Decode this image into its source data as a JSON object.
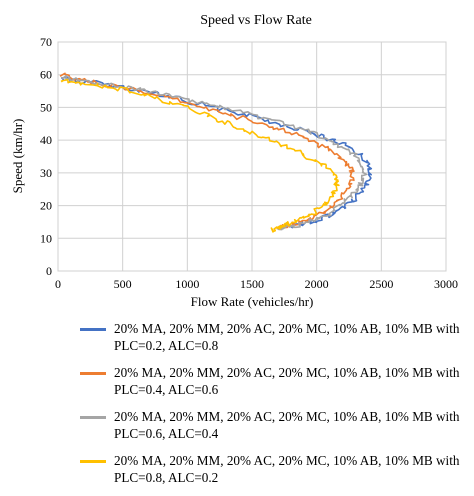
{
  "chart_data": {
    "type": "scatter",
    "title": "Speed vs Flow Rate",
    "xlabel": "Flow Rate (vehicles/hr)",
    "ylabel": "Speed (km/hr)",
    "xlim": [
      0,
      3000
    ],
    "ylim": [
      0,
      70
    ],
    "xticks": [
      0,
      500,
      1000,
      1500,
      2000,
      2500,
      3000
    ],
    "yticks": [
      0,
      10,
      20,
      30,
      40,
      50,
      60,
      70
    ],
    "grid": true,
    "legend_position": "bottom",
    "series": [
      {
        "name": "20% MA, 20% MM, 20% AC, 20% MC, 10% AB, 10% MB with PLC=0.2, ALC=0.8",
        "color": "#4472C4",
        "x": [
          30,
          150,
          300,
          500,
          700,
          900,
          1100,
          1300,
          1500,
          1700,
          1900,
          2050,
          2200,
          2320,
          2400,
          2420,
          2380,
          2300,
          2200,
          2100,
          1950,
          1850,
          1750,
          1690
        ],
        "y": [
          59,
          58,
          57.5,
          56,
          55,
          53,
          51,
          49,
          47.5,
          45,
          43,
          41,
          39,
          36,
          33,
          30,
          26,
          22,
          19,
          17,
          15,
          14,
          13.5,
          13
        ]
      },
      {
        "name": "20% MA, 20% MM, 20% AC, 20% MC, 10% AB, 10% MB with PLC=0.4, ALC=0.6",
        "color": "#ED7D31",
        "x": [
          30,
          150,
          300,
          500,
          700,
          900,
          1100,
          1300,
          1500,
          1700,
          1850,
          2000,
          2120,
          2220,
          2270,
          2280,
          2240,
          2170,
          2080,
          1980,
          1880,
          1790,
          1720,
          1690
        ],
        "y": [
          60,
          58.5,
          57.5,
          56,
          54.5,
          52.5,
          50.5,
          48,
          46,
          43.5,
          41.5,
          39,
          36.5,
          33.5,
          31,
          28,
          25,
          21.5,
          18.5,
          16.5,
          15,
          14,
          13.5,
          13
        ]
      },
      {
        "name": "20% MA, 20% MM, 20% AC, 20% MC, 10% AB, 10% MB with PLC=0.6, ALC=0.4",
        "color": "#A5A5A5",
        "x": [
          30,
          150,
          300,
          500,
          700,
          900,
          1100,
          1300,
          1500,
          1700,
          1900,
          2050,
          2180,
          2290,
          2350,
          2370,
          2330,
          2260,
          2170,
          2070,
          1950,
          1840,
          1750,
          1700
        ],
        "y": [
          59.5,
          58,
          57.5,
          56.5,
          55,
          53,
          51.5,
          49.5,
          47.5,
          45.5,
          43,
          41,
          38.5,
          35.5,
          32.5,
          29.5,
          26,
          22.5,
          19.5,
          17,
          15.5,
          14,
          13.5,
          13
        ]
      },
      {
        "name": "20% MA, 20% MM, 20% AC, 20% MC, 10% AB, 10% MB with PLC=0.8, ALC=0.2",
        "color": "#FFC000",
        "x": [
          30,
          150,
          300,
          500,
          700,
          900,
          1100,
          1250,
          1400,
          1550,
          1700,
          1850,
          1980,
          2080,
          2140,
          2160,
          2130,
          2060,
          1980,
          1890,
          1800,
          1730,
          1680,
          1660
        ],
        "y": [
          58,
          57.5,
          57,
          55.5,
          53.5,
          51,
          48.5,
          46,
          44,
          41.5,
          39,
          36.5,
          34,
          31.5,
          29,
          26.5,
          23.5,
          20.5,
          18,
          16,
          14.5,
          13.5,
          13,
          12.5
        ]
      }
    ]
  }
}
